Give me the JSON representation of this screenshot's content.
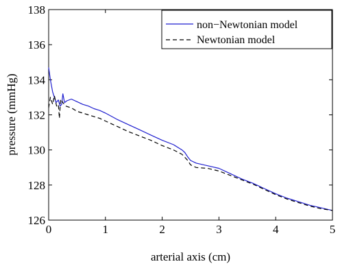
{
  "chart_data": {
    "type": "line",
    "xlabel": "arterial axis (cm)",
    "ylabel": "pressure (mmHg)",
    "xlim": [
      0,
      5
    ],
    "ylim": [
      126,
      138
    ],
    "x_ticks": [
      "0",
      "1",
      "2",
      "3",
      "4",
      "5"
    ],
    "y_ticks": [
      "126",
      "128",
      "130",
      "132",
      "134",
      "136",
      "138"
    ],
    "grid": false,
    "legend_position": "top-right",
    "series": [
      {
        "name": "non−Newtonian model",
        "color": "#1f1fcf",
        "style": "solid",
        "points": [
          [
            0.0,
            134.7
          ],
          [
            0.03,
            134.0
          ],
          [
            0.07,
            133.3
          ],
          [
            0.1,
            133.0
          ],
          [
            0.13,
            132.7
          ],
          [
            0.17,
            132.85
          ],
          [
            0.2,
            132.5
          ],
          [
            0.23,
            132.6
          ],
          [
            0.25,
            133.2
          ],
          [
            0.28,
            132.7
          ],
          [
            0.32,
            132.8
          ],
          [
            0.4,
            132.9
          ],
          [
            0.5,
            132.75
          ],
          [
            0.6,
            132.6
          ],
          [
            0.7,
            132.5
          ],
          [
            0.8,
            132.35
          ],
          [
            0.9,
            132.25
          ],
          [
            1.0,
            132.1
          ],
          [
            1.2,
            131.75
          ],
          [
            1.4,
            131.45
          ],
          [
            1.6,
            131.15
          ],
          [
            1.8,
            130.85
          ],
          [
            2.0,
            130.55
          ],
          [
            2.2,
            130.3
          ],
          [
            2.35,
            130.0
          ],
          [
            2.4,
            129.85
          ],
          [
            2.45,
            129.6
          ],
          [
            2.5,
            129.4
          ],
          [
            2.6,
            129.25
          ],
          [
            2.8,
            129.1
          ],
          [
            3.0,
            128.95
          ],
          [
            3.2,
            128.65
          ],
          [
            3.4,
            128.35
          ],
          [
            3.6,
            128.1
          ],
          [
            3.8,
            127.8
          ],
          [
            4.0,
            127.5
          ],
          [
            4.2,
            127.25
          ],
          [
            4.4,
            127.05
          ],
          [
            4.6,
            126.85
          ],
          [
            4.8,
            126.7
          ],
          [
            5.0,
            126.55
          ]
        ]
      },
      {
        "name": "Newtonian model",
        "color": "#000000",
        "style": "dashed",
        "points": [
          [
            0.0,
            132.4
          ],
          [
            0.03,
            133.0
          ],
          [
            0.07,
            132.6
          ],
          [
            0.1,
            133.1
          ],
          [
            0.14,
            132.5
          ],
          [
            0.17,
            132.6
          ],
          [
            0.19,
            131.8
          ],
          [
            0.21,
            132.9
          ],
          [
            0.25,
            132.7
          ],
          [
            0.3,
            132.5
          ],
          [
            0.4,
            132.4
          ],
          [
            0.5,
            132.2
          ],
          [
            0.6,
            132.1
          ],
          [
            0.7,
            132.0
          ],
          [
            0.8,
            131.9
          ],
          [
            0.9,
            131.8
          ],
          [
            1.0,
            131.65
          ],
          [
            1.2,
            131.35
          ],
          [
            1.4,
            131.05
          ],
          [
            1.6,
            130.8
          ],
          [
            1.8,
            130.55
          ],
          [
            2.0,
            130.25
          ],
          [
            2.2,
            130.0
          ],
          [
            2.35,
            129.75
          ],
          [
            2.45,
            129.4
          ],
          [
            2.5,
            129.15
          ],
          [
            2.6,
            129.0
          ],
          [
            2.8,
            128.95
          ],
          [
            3.0,
            128.8
          ],
          [
            3.2,
            128.55
          ],
          [
            3.4,
            128.3
          ],
          [
            3.6,
            128.05
          ],
          [
            3.8,
            127.75
          ],
          [
            4.0,
            127.45
          ],
          [
            4.2,
            127.2
          ],
          [
            4.4,
            127.0
          ],
          [
            4.6,
            126.8
          ],
          [
            4.8,
            126.65
          ],
          [
            5.0,
            126.55
          ]
        ]
      }
    ]
  }
}
